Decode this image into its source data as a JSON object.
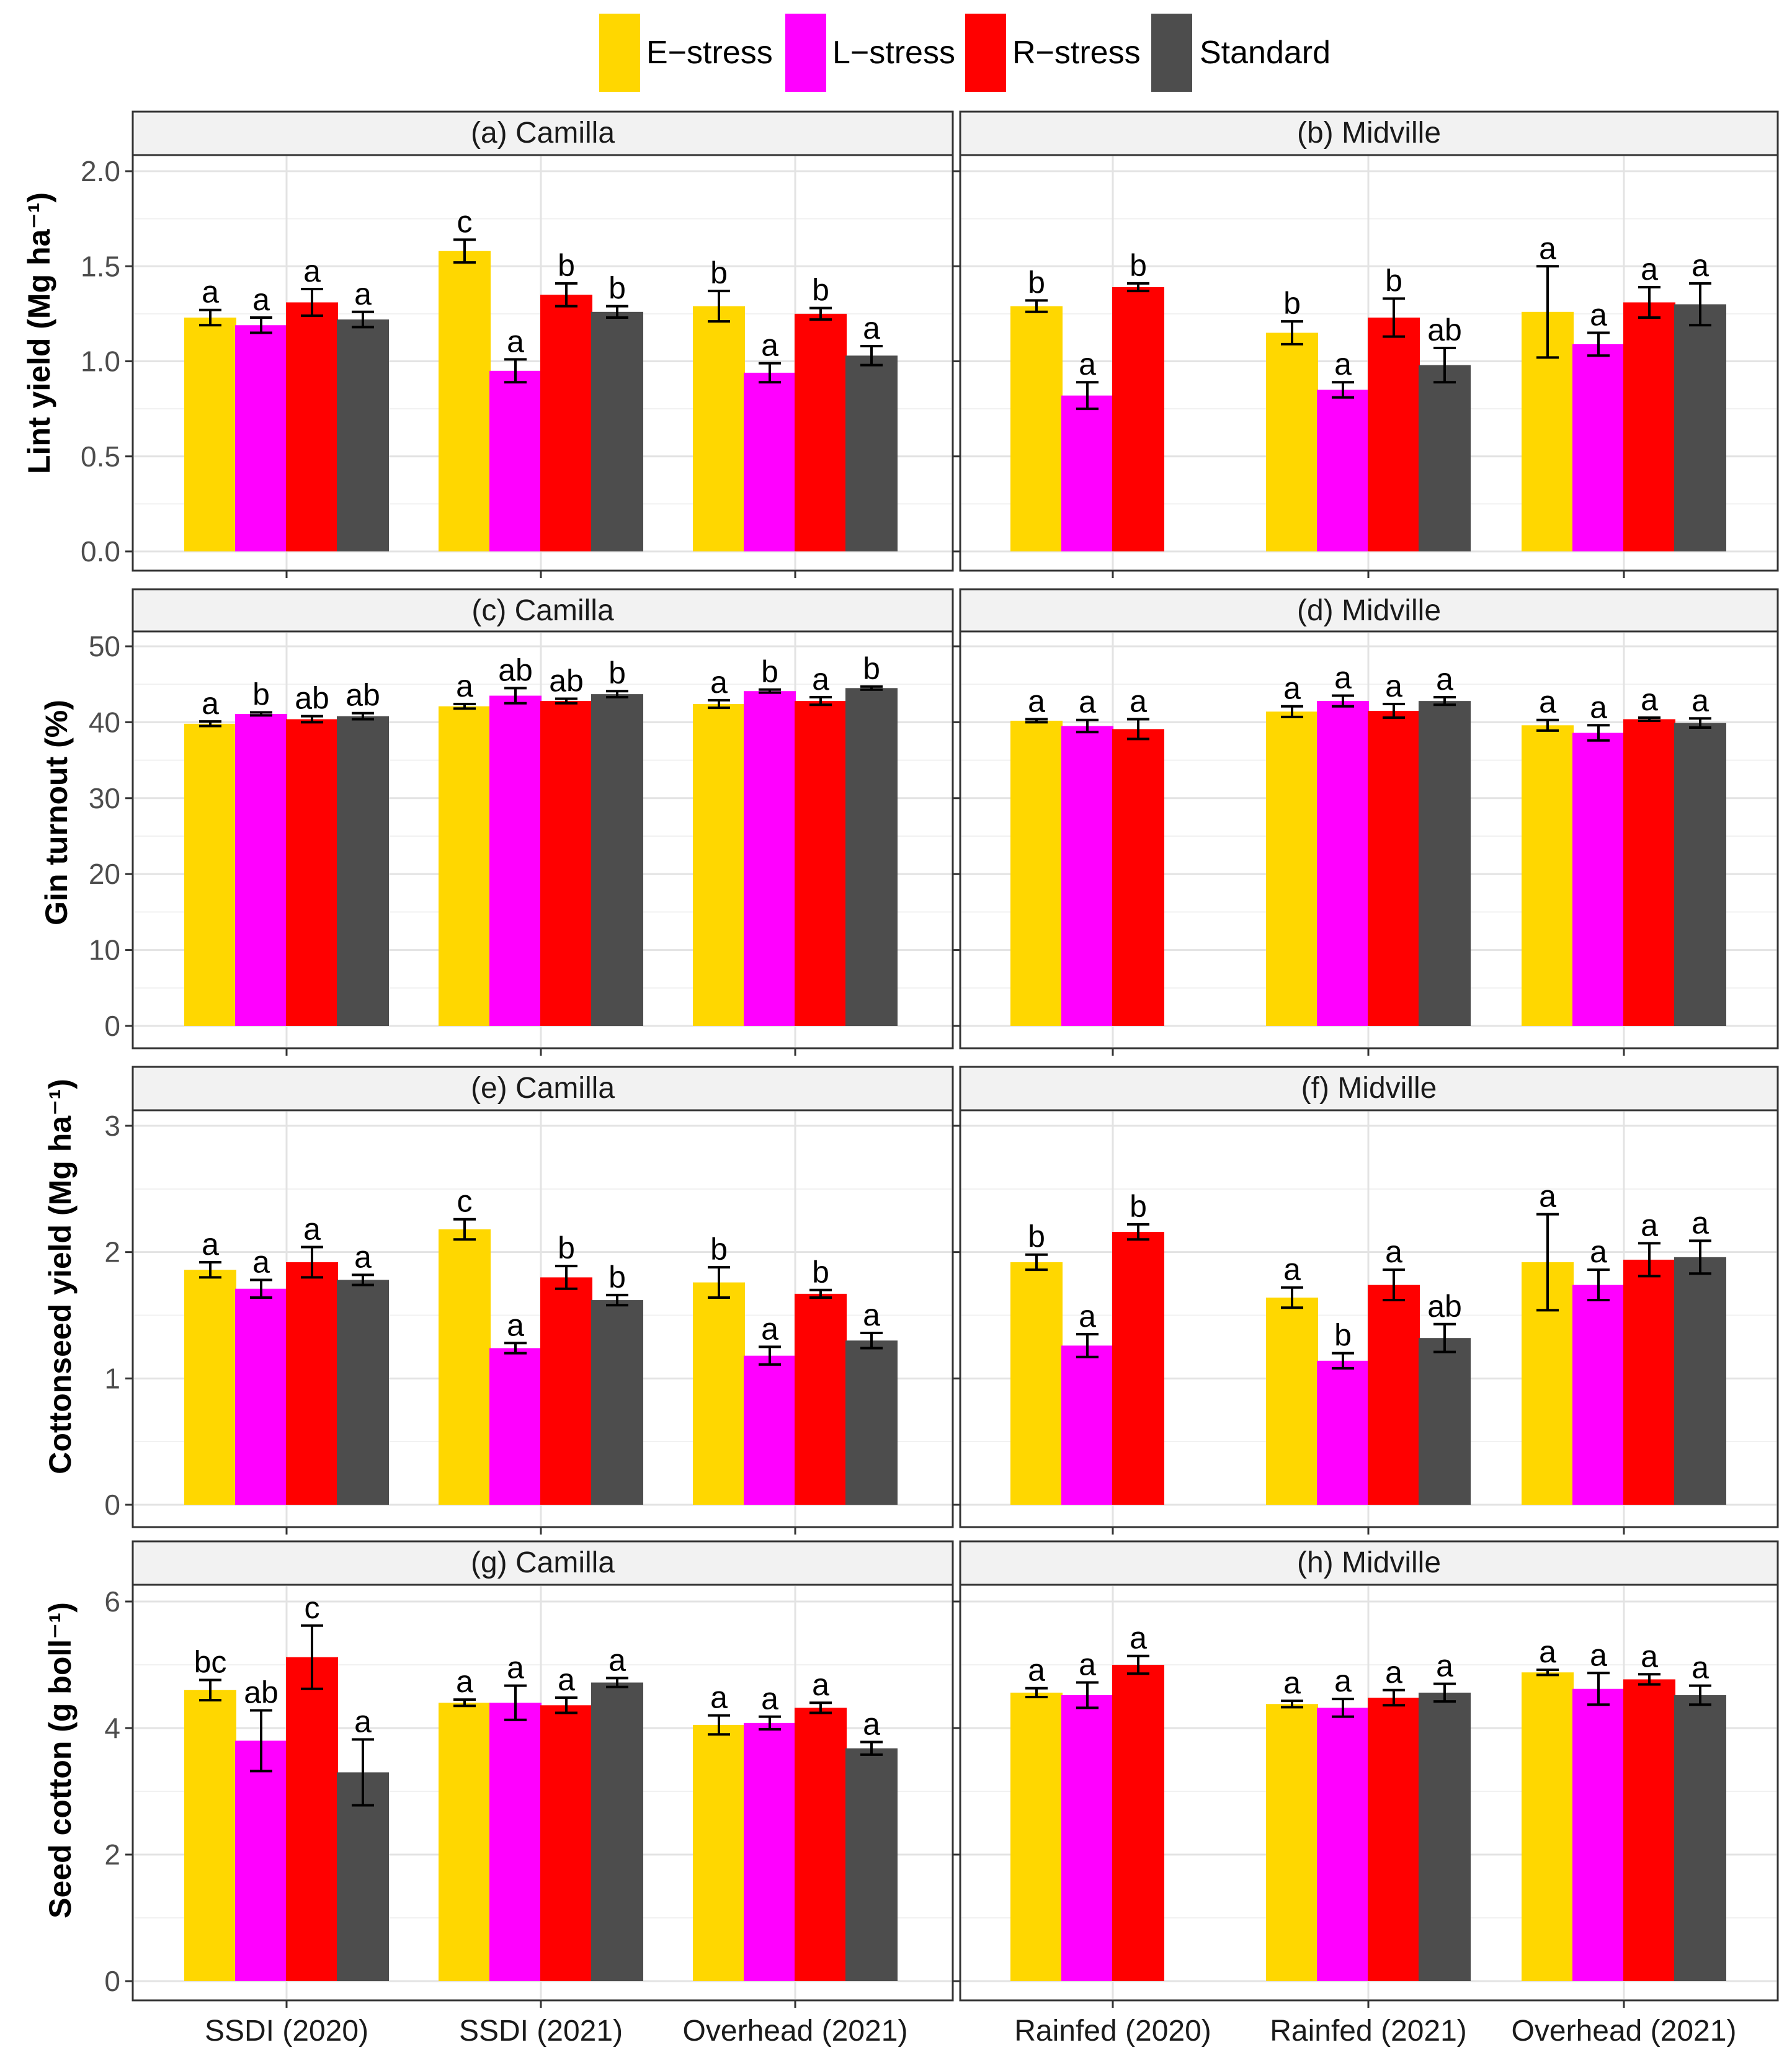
{
  "legend": {
    "items": [
      {
        "label": "E−stress",
        "color": "#FFD700"
      },
      {
        "label": "L−stress",
        "color": "#FF00FF"
      },
      {
        "label": "R−stress",
        "color": "#FF0000"
      },
      {
        "label": "Standard",
        "color": "#4D4D4D"
      }
    ]
  },
  "x_categories": {
    "camilla": [
      "SSDI (2020)",
      "SSDI (2021)",
      "Overhead (2021)"
    ],
    "midville": [
      "Rainfed (2020)",
      "Rainfed (2021)",
      "Overhead (2021)"
    ]
  },
  "chart_data": [
    {
      "type": "bar",
      "panel": "(a) Camilla",
      "location": "Camilla",
      "ylabel": "Lint yield (Mg ha⁻¹)",
      "ylim": [
        0,
        2.1
      ],
      "yticks": [
        "0.0",
        "0.5",
        "1.0",
        "1.5",
        "2.0"
      ],
      "categories": [
        "SSDI (2020)",
        "SSDI (2021)",
        "Overhead (2021)"
      ],
      "series": [
        {
          "name": "E−stress",
          "values": [
            1.23,
            1.58,
            1.29
          ],
          "errors": [
            0.04,
            0.06,
            0.08
          ],
          "letters": [
            "a",
            "c",
            "b"
          ]
        },
        {
          "name": "L−stress",
          "values": [
            1.19,
            0.95,
            0.94
          ],
          "errors": [
            0.04,
            0.06,
            0.05
          ],
          "letters": [
            "a",
            "a",
            "a"
          ]
        },
        {
          "name": "R−stress",
          "values": [
            1.31,
            1.35,
            1.25
          ],
          "errors": [
            0.07,
            0.06,
            0.03
          ],
          "letters": [
            "a",
            "b",
            "b"
          ]
        },
        {
          "name": "Standard",
          "values": [
            1.22,
            1.26,
            1.03
          ],
          "errors": [
            0.04,
            0.03,
            0.05
          ],
          "letters": [
            "a",
            "b",
            "a"
          ]
        }
      ]
    },
    {
      "type": "bar",
      "panel": "(b) Midville",
      "location": "Midville",
      "ylabel": "Lint yield (Mg ha⁻¹)",
      "ylim": [
        0,
        2.1
      ],
      "yticks": [
        "0.0",
        "0.5",
        "1.0",
        "1.5",
        "2.0"
      ],
      "categories": [
        "Rainfed (2020)",
        "Rainfed (2021)",
        "Overhead (2021)"
      ],
      "series": [
        {
          "name": "E−stress",
          "values": [
            1.29,
            1.15,
            1.26
          ],
          "errors": [
            0.03,
            0.06,
            0.24
          ],
          "letters": [
            "b",
            "b",
            "a"
          ]
        },
        {
          "name": "L−stress",
          "values": [
            0.82,
            0.85,
            1.09
          ],
          "errors": [
            0.07,
            0.04,
            0.06
          ],
          "letters": [
            "a",
            "a",
            "a"
          ]
        },
        {
          "name": "R−stress",
          "values": [
            1.39,
            1.23,
            1.31
          ],
          "errors": [
            0.02,
            0.1,
            0.08
          ],
          "letters": [
            "b",
            "b",
            "a"
          ]
        },
        {
          "name": "Standard",
          "values": [
            null,
            0.98,
            1.3
          ],
          "errors": [
            null,
            0.09,
            0.11
          ],
          "letters": [
            "",
            "ab",
            "a"
          ]
        }
      ]
    },
    {
      "type": "bar",
      "panel": "(c) Camilla",
      "location": "Camilla",
      "ylabel": "Gin turnout (%)",
      "ylim": [
        0,
        52
      ],
      "yticks": [
        "0",
        "10",
        "20",
        "30",
        "40",
        "50"
      ],
      "categories": [
        "SSDI (2020)",
        "SSDI (2021)",
        "Overhead (2021)"
      ],
      "series": [
        {
          "name": "E−stress",
          "values": [
            39.8,
            42.1,
            42.4
          ],
          "errors": [
            0.3,
            0.3,
            0.5
          ],
          "letters": [
            "a",
            "a",
            "a"
          ]
        },
        {
          "name": "L−stress",
          "values": [
            41.1,
            43.5,
            44.1
          ],
          "errors": [
            0.2,
            1.0,
            0.2
          ],
          "letters": [
            "b",
            "ab",
            "b"
          ]
        },
        {
          "name": "R−stress",
          "values": [
            40.4,
            42.8,
            42.8
          ],
          "errors": [
            0.4,
            0.3,
            0.5
          ],
          "letters": [
            "ab",
            "ab",
            "a"
          ]
        },
        {
          "name": "Standard",
          "values": [
            40.8,
            43.7,
            44.5
          ],
          "errors": [
            0.4,
            0.4,
            0.2
          ],
          "letters": [
            "ab",
            "b",
            "b"
          ]
        }
      ]
    },
    {
      "type": "bar",
      "panel": "(d) Midville",
      "location": "Midville",
      "ylabel": "Gin turnout (%)",
      "ylim": [
        0,
        52
      ],
      "yticks": [
        "0",
        "10",
        "20",
        "30",
        "40",
        "50"
      ],
      "categories": [
        "Rainfed (2020)",
        "Rainfed (2021)",
        "Overhead (2021)"
      ],
      "series": [
        {
          "name": "E−stress",
          "values": [
            40.2,
            41.4,
            39.6
          ],
          "errors": [
            0.2,
            0.7,
            0.7
          ],
          "letters": [
            "a",
            "a",
            "a"
          ]
        },
        {
          "name": "L−stress",
          "values": [
            39.5,
            42.8,
            38.6
          ],
          "errors": [
            0.8,
            0.7,
            1.0
          ],
          "letters": [
            "a",
            "a",
            "a"
          ]
        },
        {
          "name": "R−stress",
          "values": [
            39.1,
            41.5,
            40.4
          ],
          "errors": [
            1.3,
            0.9,
            0.2
          ],
          "letters": [
            "a",
            "a",
            "a"
          ]
        },
        {
          "name": "Standard",
          "values": [
            null,
            42.8,
            39.9
          ],
          "errors": [
            null,
            0.5,
            0.6
          ],
          "letters": [
            "",
            "a",
            "a"
          ]
        }
      ]
    },
    {
      "type": "bar",
      "panel": "(e) Camilla",
      "location": "Camilla",
      "ylabel": "Cottonseed yield (Mg ha⁻¹)",
      "ylim": [
        0,
        3.2
      ],
      "yticks": [
        "0",
        "1",
        "2",
        "3"
      ],
      "categories": [
        "SSDI (2020)",
        "SSDI (2021)",
        "Overhead (2021)"
      ],
      "series": [
        {
          "name": "E−stress",
          "values": [
            1.86,
            2.18,
            1.76
          ],
          "errors": [
            0.06,
            0.08,
            0.12
          ],
          "letters": [
            "a",
            "c",
            "b"
          ]
        },
        {
          "name": "L−stress",
          "values": [
            1.71,
            1.24,
            1.18
          ],
          "errors": [
            0.07,
            0.04,
            0.07
          ],
          "letters": [
            "a",
            "a",
            "a"
          ]
        },
        {
          "name": "R−stress",
          "values": [
            1.92,
            1.8,
            1.67
          ],
          "errors": [
            0.12,
            0.09,
            0.03
          ],
          "letters": [
            "a",
            "b",
            "b"
          ]
        },
        {
          "name": "Standard",
          "values": [
            1.78,
            1.62,
            1.3
          ],
          "errors": [
            0.04,
            0.04,
            0.06
          ],
          "letters": [
            "a",
            "b",
            "a"
          ]
        }
      ]
    },
    {
      "type": "bar",
      "panel": "(f) Midville",
      "location": "Midville",
      "ylabel": "Cottonseed yield (Mg ha⁻¹)",
      "ylim": [
        0,
        3.2
      ],
      "yticks": [
        "0",
        "1",
        "2",
        "3"
      ],
      "categories": [
        "Rainfed (2020)",
        "Rainfed (2021)",
        "Overhead (2021)"
      ],
      "series": [
        {
          "name": "E−stress",
          "values": [
            1.92,
            1.64,
            1.92
          ],
          "errors": [
            0.06,
            0.08,
            0.38
          ],
          "letters": [
            "b",
            "a",
            "a"
          ]
        },
        {
          "name": "L−stress",
          "values": [
            1.26,
            1.14,
            1.74
          ],
          "errors": [
            0.09,
            0.06,
            0.12
          ],
          "letters": [
            "a",
            "b",
            "a"
          ]
        },
        {
          "name": "R−stress",
          "values": [
            2.16,
            1.74,
            1.94
          ],
          "errors": [
            0.06,
            0.12,
            0.13
          ],
          "letters": [
            "b",
            "a",
            "a"
          ]
        },
        {
          "name": "Standard",
          "values": [
            null,
            1.32,
            1.96
          ],
          "errors": [
            null,
            0.11,
            0.13
          ],
          "letters": [
            "",
            "ab",
            "a"
          ]
        }
      ]
    },
    {
      "type": "bar",
      "panel": "(g) Camilla",
      "location": "Camilla",
      "ylabel": "Seed cotton (g boll⁻¹)",
      "ylim": [
        0,
        6.1
      ],
      "yticks": [
        "0",
        "2",
        "4",
        "6"
      ],
      "categories": [
        "SSDI (2020)",
        "SSDI (2021)",
        "Overhead (2021)"
      ],
      "series": [
        {
          "name": "E−stress",
          "values": [
            4.6,
            4.4,
            4.05
          ],
          "errors": [
            0.16,
            0.05,
            0.15
          ],
          "letters": [
            "bc",
            "a",
            "a"
          ]
        },
        {
          "name": "L−stress",
          "values": [
            3.8,
            4.4,
            4.08
          ],
          "errors": [
            0.48,
            0.27,
            0.1
          ],
          "letters": [
            "ab",
            "a",
            "a"
          ]
        },
        {
          "name": "R−stress",
          "values": [
            5.12,
            4.36,
            4.32
          ],
          "errors": [
            0.5,
            0.12,
            0.08
          ],
          "letters": [
            "c",
            "a",
            "a"
          ]
        },
        {
          "name": "Standard",
          "values": [
            3.3,
            4.72,
            3.68
          ],
          "errors": [
            0.52,
            0.07,
            0.1
          ],
          "letters": [
            "a",
            "a",
            "a"
          ]
        }
      ]
    },
    {
      "type": "bar",
      "panel": "(h) Midville",
      "location": "Midville",
      "ylabel": "Seed cotton (g boll⁻¹)",
      "ylim": [
        0,
        6.1
      ],
      "yticks": [
        "0",
        "2",
        "4",
        "6"
      ],
      "categories": [
        "Rainfed (2020)",
        "Rainfed (2021)",
        "Overhead (2021)"
      ],
      "series": [
        {
          "name": "E−stress",
          "values": [
            4.56,
            4.38,
            4.88
          ],
          "errors": [
            0.07,
            0.05,
            0.04
          ],
          "letters": [
            "a",
            "a",
            "a"
          ]
        },
        {
          "name": "L−stress",
          "values": [
            4.52,
            4.32,
            4.62
          ],
          "errors": [
            0.2,
            0.14,
            0.25
          ],
          "letters": [
            "a",
            "a",
            "a"
          ]
        },
        {
          "name": "R−stress",
          "values": [
            5.0,
            4.48,
            4.77
          ],
          "errors": [
            0.14,
            0.12,
            0.08
          ],
          "letters": [
            "a",
            "a",
            "a"
          ]
        },
        {
          "name": "Standard",
          "values": [
            null,
            4.56,
            4.52
          ],
          "errors": [
            null,
            0.14,
            0.15
          ],
          "letters": [
            "",
            "a",
            "a"
          ]
        }
      ]
    }
  ]
}
